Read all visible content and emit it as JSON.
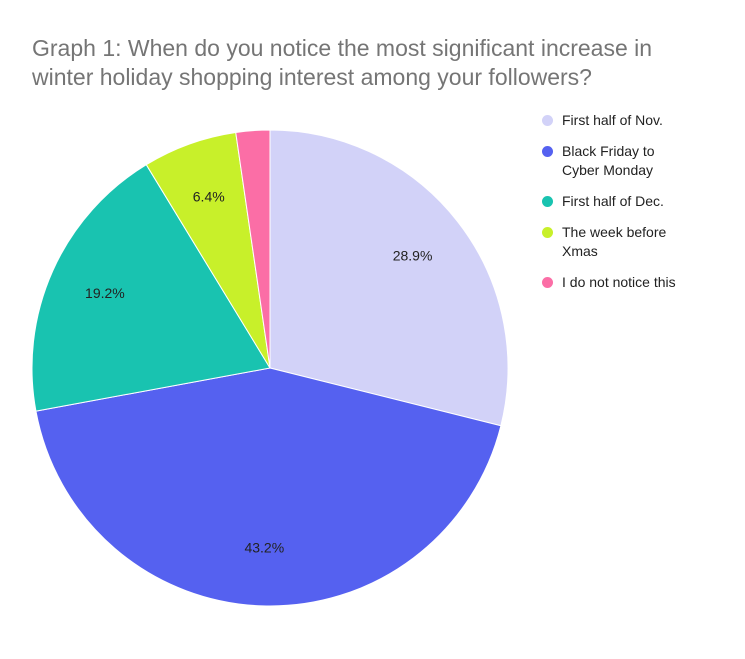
{
  "chart_data": {
    "type": "pie",
    "title": "Graph 1: When do you notice the most significant increase in winter holiday shopping interest among your followers?",
    "categories": [
      "First half of Nov.",
      "Black Friday to Cyber Monday",
      "First half of Dec.",
      "The week before Xmas",
      "I do not notice this"
    ],
    "values": [
      28.9,
      43.2,
      19.2,
      6.4,
      2.3
    ],
    "value_labels": [
      "28.9%",
      "43.2%",
      "19.2%",
      "6.4%",
      null
    ],
    "colors": [
      "#d2d2f8",
      "#5561f0",
      "#19c3b0",
      "#c8f02a",
      "#fb6ea6"
    ],
    "legend": "right"
  }
}
